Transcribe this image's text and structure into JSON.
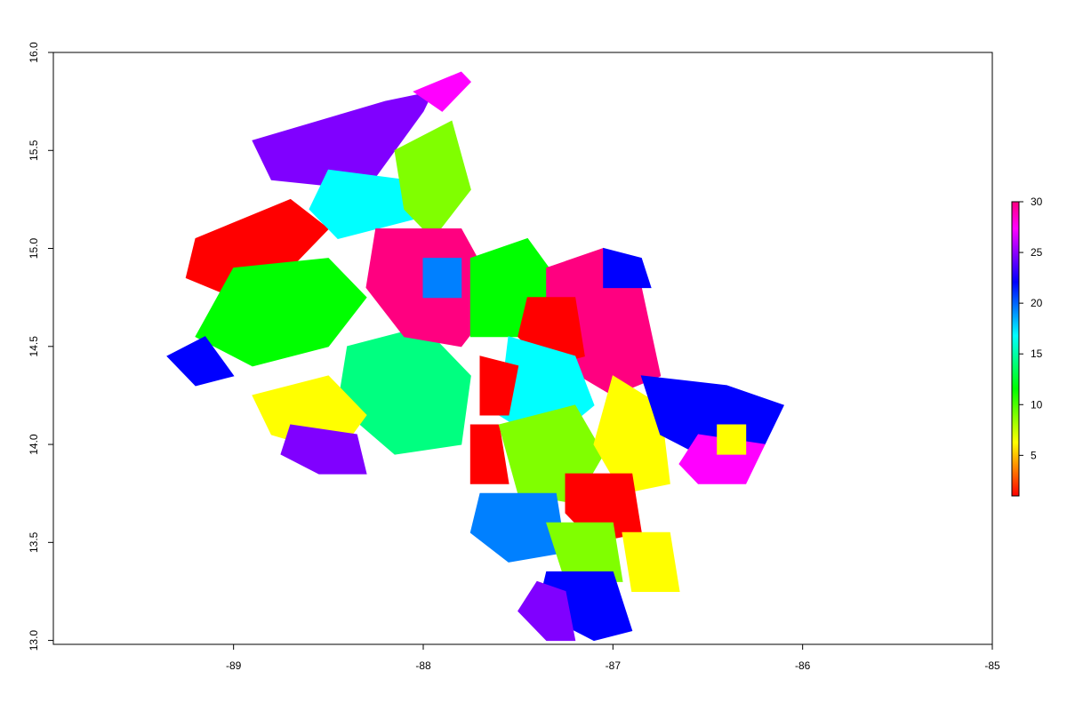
{
  "chart_data": {
    "type": "heatmap",
    "title": "",
    "xlabel": "",
    "ylabel": "",
    "xlim": [
      -89.95,
      -85.0
    ],
    "ylim": [
      12.98,
      16.0
    ],
    "x_ticks": [
      "-89",
      "-88",
      "-87",
      "-86",
      "-85"
    ],
    "y_ticks": [
      "13.0",
      "13.5",
      "14.0",
      "14.5",
      "15.0",
      "15.5",
      "16.0"
    ],
    "grid": false,
    "legend": {
      "placement": "right",
      "range": [
        1,
        30
      ],
      "ticks": [
        "5",
        "10",
        "15",
        "20",
        "25",
        "30"
      ],
      "colormap": "rainbow",
      "colors": [
        "#ff0000",
        "#ff8000",
        "#ffff00",
        "#80ff00",
        "#00ff00",
        "#00ff80",
        "#00ffff",
        "#0080ff",
        "#0000ff",
        "#8000ff",
        "#ff00ff",
        "#ff0080"
      ]
    },
    "series": [
      {
        "value": 23,
        "polygon": [
          [
            -88.9,
            15.55
          ],
          [
            -88.2,
            15.75
          ],
          [
            -87.95,
            15.8
          ],
          [
            -88.0,
            15.7
          ],
          [
            -88.3,
            15.3
          ],
          [
            -88.8,
            15.35
          ]
        ]
      },
      {
        "value": 27,
        "polygon": [
          [
            -88.05,
            15.8
          ],
          [
            -87.8,
            15.9
          ],
          [
            -87.75,
            15.85
          ],
          [
            -87.9,
            15.7
          ]
        ]
      },
      {
        "value": 3,
        "polygon": [
          [
            -89.2,
            15.05
          ],
          [
            -88.7,
            15.25
          ],
          [
            -88.5,
            15.1
          ],
          [
            -88.7,
            14.9
          ],
          [
            -89.0,
            14.75
          ],
          [
            -89.25,
            14.85
          ]
        ]
      },
      {
        "value": 17,
        "polygon": [
          [
            -88.5,
            15.4
          ],
          [
            -88.1,
            15.35
          ],
          [
            -88.05,
            15.15
          ],
          [
            -88.45,
            15.05
          ],
          [
            -88.6,
            15.2
          ]
        ]
      },
      {
        "value": 9,
        "polygon": [
          [
            -88.15,
            15.5
          ],
          [
            -87.85,
            15.65
          ],
          [
            -87.75,
            15.3
          ],
          [
            -87.95,
            15.05
          ],
          [
            -88.1,
            15.2
          ]
        ]
      },
      {
        "value": 11,
        "polygon": [
          [
            -89.0,
            14.9
          ],
          [
            -88.5,
            14.95
          ],
          [
            -88.3,
            14.75
          ],
          [
            -88.5,
            14.5
          ],
          [
            -88.9,
            14.4
          ],
          [
            -89.2,
            14.55
          ]
        ]
      },
      {
        "value": 22,
        "polygon": [
          [
            -89.35,
            14.45
          ],
          [
            -89.15,
            14.55
          ],
          [
            -89.0,
            14.35
          ],
          [
            -89.2,
            14.3
          ]
        ]
      },
      {
        "value": 14,
        "polygon": [
          [
            -88.4,
            14.5
          ],
          [
            -88.0,
            14.6
          ],
          [
            -87.75,
            14.35
          ],
          [
            -87.8,
            14.0
          ],
          [
            -88.15,
            13.95
          ],
          [
            -88.45,
            14.2
          ]
        ]
      },
      {
        "value": 29,
        "polygon": [
          [
            -88.25,
            15.1
          ],
          [
            -87.8,
            15.1
          ],
          [
            -87.6,
            14.75
          ],
          [
            -87.8,
            14.5
          ],
          [
            -88.1,
            14.55
          ],
          [
            -88.3,
            14.8
          ]
        ]
      },
      {
        "value": 19,
        "polygon": [
          [
            -88.0,
            14.95
          ],
          [
            -87.8,
            14.95
          ],
          [
            -87.8,
            14.75
          ],
          [
            -88.0,
            14.75
          ]
        ]
      },
      {
        "value": 8,
        "polygon": [
          [
            -88.9,
            14.25
          ],
          [
            -88.5,
            14.35
          ],
          [
            -88.3,
            14.15
          ],
          [
            -88.45,
            13.95
          ],
          [
            -88.8,
            14.05
          ]
        ]
      },
      {
        "value": 24,
        "polygon": [
          [
            -88.7,
            14.1
          ],
          [
            -88.35,
            14.05
          ],
          [
            -88.3,
            13.85
          ],
          [
            -88.55,
            13.85
          ],
          [
            -88.75,
            13.95
          ]
        ]
      },
      {
        "value": 12,
        "polygon": [
          [
            -87.75,
            14.95
          ],
          [
            -87.45,
            15.05
          ],
          [
            -87.3,
            14.85
          ],
          [
            -87.45,
            14.55
          ],
          [
            -87.75,
            14.55
          ]
        ]
      },
      {
        "value": 28,
        "polygon": [
          [
            -87.35,
            14.9
          ],
          [
            -87.05,
            15.0
          ],
          [
            -86.85,
            14.8
          ],
          [
            -86.75,
            14.35
          ],
          [
            -87.0,
            14.25
          ],
          [
            -87.35,
            14.45
          ]
        ]
      },
      {
        "value": 2,
        "polygon": [
          [
            -87.45,
            14.75
          ],
          [
            -87.2,
            14.75
          ],
          [
            -87.15,
            14.45
          ],
          [
            -87.35,
            14.4
          ],
          [
            -87.5,
            14.55
          ]
        ]
      },
      {
        "value": 22,
        "polygon": [
          [
            -87.05,
            15.0
          ],
          [
            -86.85,
            14.95
          ],
          [
            -86.8,
            14.8
          ],
          [
            -87.05,
            14.8
          ]
        ]
      },
      {
        "value": 16,
        "polygon": [
          [
            -87.55,
            14.55
          ],
          [
            -87.2,
            14.45
          ],
          [
            -87.1,
            14.2
          ],
          [
            -87.35,
            14.0
          ],
          [
            -87.6,
            14.15
          ]
        ]
      },
      {
        "value": 1,
        "polygon": [
          [
            -87.75,
            14.1
          ],
          [
            -87.6,
            14.1
          ],
          [
            -87.55,
            13.8
          ],
          [
            -87.75,
            13.8
          ]
        ]
      },
      {
        "value": 2,
        "polygon": [
          [
            -87.7,
            14.45
          ],
          [
            -87.5,
            14.4
          ],
          [
            -87.55,
            14.15
          ],
          [
            -87.7,
            14.15
          ]
        ]
      },
      {
        "value": 10,
        "polygon": [
          [
            -87.6,
            14.1
          ],
          [
            -87.2,
            14.2
          ],
          [
            -87.05,
            13.95
          ],
          [
            -87.2,
            13.7
          ],
          [
            -87.5,
            13.75
          ]
        ]
      },
      {
        "value": 6,
        "polygon": [
          [
            -87.0,
            14.35
          ],
          [
            -86.75,
            14.2
          ],
          [
            -86.7,
            13.8
          ],
          [
            -86.95,
            13.75
          ],
          [
            -87.1,
            14.0
          ]
        ]
      },
      {
        "value": 22,
        "polygon": [
          [
            -86.85,
            14.35
          ],
          [
            -86.4,
            14.3
          ],
          [
            -86.1,
            14.2
          ],
          [
            -86.2,
            14.0
          ],
          [
            -86.45,
            13.9
          ],
          [
            -86.75,
            14.05
          ]
        ]
      },
      {
        "value": 27,
        "polygon": [
          [
            -86.55,
            14.05
          ],
          [
            -86.2,
            14.0
          ],
          [
            -86.3,
            13.8
          ],
          [
            -86.55,
            13.8
          ],
          [
            -86.65,
            13.9
          ]
        ]
      },
      {
        "value": 6,
        "polygon": [
          [
            -86.45,
            14.1
          ],
          [
            -86.3,
            14.1
          ],
          [
            -86.3,
            13.95
          ],
          [
            -86.45,
            13.95
          ]
        ]
      },
      {
        "value": 18,
        "polygon": [
          [
            -87.7,
            13.75
          ],
          [
            -87.3,
            13.75
          ],
          [
            -87.25,
            13.45
          ],
          [
            -87.55,
            13.4
          ],
          [
            -87.75,
            13.55
          ]
        ]
      },
      {
        "value": 3,
        "polygon": [
          [
            -87.25,
            13.85
          ],
          [
            -86.9,
            13.85
          ],
          [
            -86.85,
            13.55
          ],
          [
            -87.1,
            13.5
          ],
          [
            -87.25,
            13.65
          ]
        ]
      },
      {
        "value": 10,
        "polygon": [
          [
            -87.35,
            13.6
          ],
          [
            -87.0,
            13.6
          ],
          [
            -86.95,
            13.3
          ],
          [
            -87.25,
            13.3
          ]
        ]
      },
      {
        "value": 8,
        "polygon": [
          [
            -86.95,
            13.55
          ],
          [
            -86.7,
            13.55
          ],
          [
            -86.65,
            13.25
          ],
          [
            -86.9,
            13.25
          ]
        ]
      },
      {
        "value": 21,
        "polygon": [
          [
            -87.35,
            13.35
          ],
          [
            -87.0,
            13.35
          ],
          [
            -86.9,
            13.05
          ],
          [
            -87.1,
            13.0
          ],
          [
            -87.4,
            13.15
          ]
        ]
      },
      {
        "value": 25,
        "polygon": [
          [
            -87.4,
            13.3
          ],
          [
            -87.25,
            13.25
          ],
          [
            -87.2,
            13.0
          ],
          [
            -87.35,
            13.0
          ],
          [
            -87.5,
            13.15
          ]
        ]
      }
    ]
  }
}
